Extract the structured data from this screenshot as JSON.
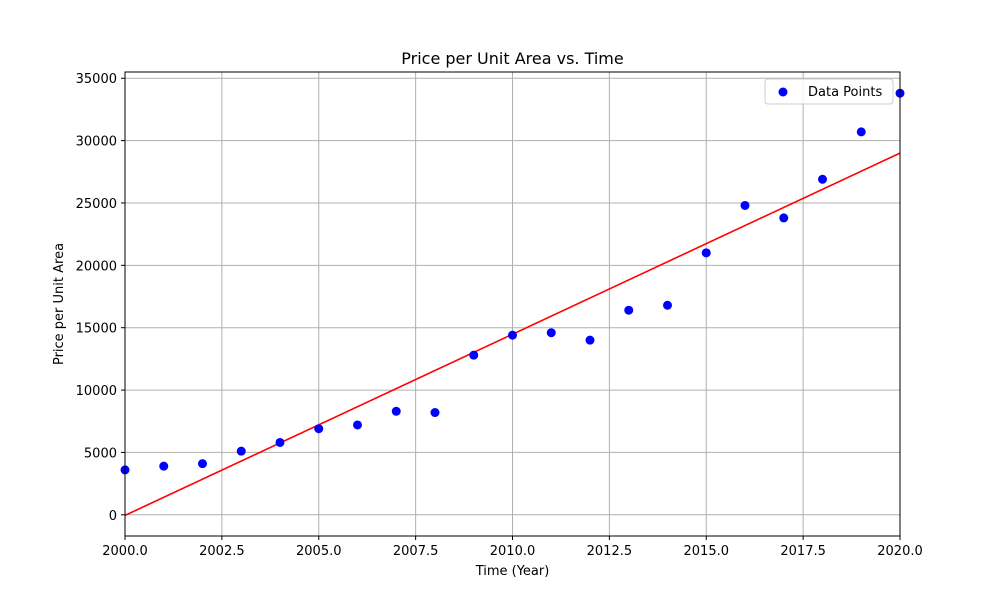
{
  "chart_data": {
    "type": "scatter",
    "title": "Price per Unit Area vs. Time",
    "xlabel": "Time (Year)",
    "ylabel": "Price per Unit Area",
    "xlim": [
      2000,
      2020
    ],
    "ylim": [
      -1700,
      35500
    ],
    "grid": true,
    "legend_position": "top-right",
    "x_ticks": [
      2000.0,
      2002.5,
      2005.0,
      2007.5,
      2010.0,
      2012.5,
      2015.0,
      2017.5,
      2020.0
    ],
    "x_tick_labels": [
      "2000.0",
      "2002.5",
      "2005.0",
      "2007.5",
      "2010.0",
      "2012.5",
      "2015.0",
      "2017.5",
      "2020.0"
    ],
    "y_ticks": [
      0,
      5000,
      10000,
      15000,
      20000,
      25000,
      30000,
      35000
    ],
    "y_tick_labels": [
      "0",
      "5000",
      "10000",
      "15000",
      "20000",
      "25000",
      "30000",
      "35000"
    ],
    "series": [
      {
        "name": "Data Points",
        "kind": "scatter",
        "color": "#0000ff",
        "x": [
          2000,
          2001,
          2002,
          2003,
          2004,
          2005,
          2006,
          2007,
          2008,
          2009,
          2010,
          2011,
          2012,
          2013,
          2014,
          2015,
          2016,
          2017,
          2018,
          2019,
          2020
        ],
        "y": [
          3600,
          3900,
          4100,
          5100,
          5800,
          6900,
          7200,
          8300,
          8200,
          12800,
          14400,
          14600,
          14000,
          16400,
          16800,
          21000,
          24800,
          23800,
          26900,
          30700,
          33800
        ]
      },
      {
        "kind": "line",
        "color": "#ff0000",
        "x": [
          2000,
          2020
        ],
        "y": [
          -50,
          29000
        ]
      }
    ]
  }
}
